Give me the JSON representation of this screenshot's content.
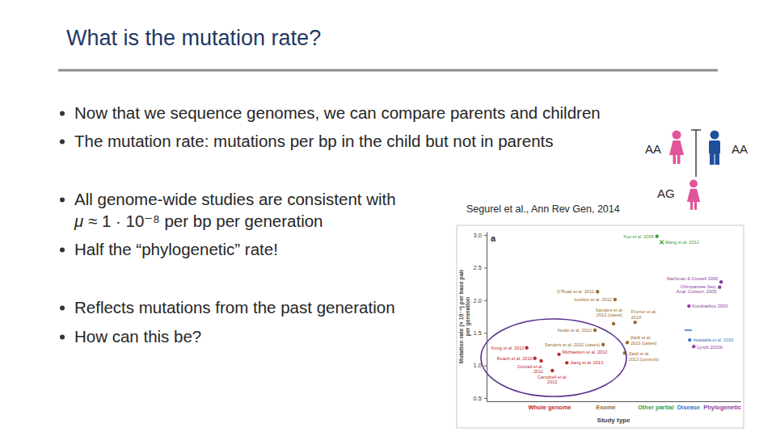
{
  "slide": {
    "title": "What is the mutation rate?",
    "bullets": [
      {
        "text": "Now that we sequence genomes, we can compare parents and children"
      },
      {
        "text": "The mutation rate: mutations per bp in the child but not in parents"
      },
      {
        "text": "All genome-wide studies are consistent with",
        "formula": {
          "symbol": "μ",
          "text": " ≈ 1 · 10⁻⁸ per bp per generation"
        }
      },
      {
        "text": "Half the “phylogenetic” rate!"
      },
      {
        "text": "Reflects mutations from the past generation"
      },
      {
        "text": "How can this be?"
      }
    ],
    "citation": "Segurel et al., Ann Rev Gen, 2014",
    "pedigree": {
      "parent_left": "AA",
      "parent_right": "AA",
      "child": "AG"
    }
  },
  "chart_data": {
    "type": "scatter",
    "panel_label": "a",
    "xlabel": "Study type",
    "ylabel": [
      "Mutation rate (× 10⁻⁸) per base pair",
      "per generation"
    ],
    "xlim": [
      0,
      10
    ],
    "ylim": [
      0.45,
      3.05
    ],
    "xticks": [
      {
        "value": 2.47,
        "label": "Whole genome"
      },
      {
        "value": 4.68,
        "label": "Exome"
      },
      {
        "value": 6.65,
        "label": "Other partial"
      },
      {
        "value": 7.94,
        "label": "Disease"
      },
      {
        "value": 9.27,
        "label": "Phylogenetic"
      }
    ],
    "yticks": [
      0.5,
      {
        "value": 1,
        "label": "1.0"
      },
      1.5,
      {
        "value": 2,
        "label": "2.0"
      },
      2.5,
      {
        "value": 3,
        "label": "3.0"
      }
    ],
    "series": [
      {
        "color": "#c1272d",
        "marker": "circle",
        "x": [
          1.58,
          1.9,
          2.15,
          2.59,
          2.85,
          3.16
        ],
        "values": [
          1.27,
          1.11,
          1.07,
          0.92,
          1.17,
          1.04
        ],
        "point_labels": [
          "Kong et al. 2012",
          "Roach et al. 2010",
          [
            "Conrad et al.",
            "2011"
          ],
          [
            "Campbell et al.",
            "2012"
          ],
          "Michaelson et al. 2012",
          "Jiang et al. 2013"
        ]
      },
      {
        "color": "#9b6b2f",
        "marker": "circle",
        "x": [
          4.37,
          5.06,
          5.0,
          4.27,
          4.59,
          5.85,
          5.54,
          5.44
        ],
        "values": [
          2.13,
          2.01,
          1.64,
          1.54,
          1.32,
          1.66,
          1.35,
          1.19
        ],
        "point_labels": [
          "O’Roak et al. 2012",
          "Iossifov et al. 2012",
          [
            "Sanders et al.",
            "2012 (cases)"
          ],
          "Neale et al. 2012",
          "Sanders et al. 2012 (cases)",
          [
            "Fromer et al.",
            "2014"
          ],
          [
            "Zaidi et al.",
            "2013 (cases)"
          ],
          [
            "Zaidi et al.",
            "2013 (controls)"
          ]
        ]
      },
      {
        "color": "#3d9a3d",
        "marker": "circle",
        "x": [
          6.71
        ],
        "values": [
          2.98
        ],
        "point_labels": [
          "Xue et al. 2009"
        ]
      },
      {
        "color": "#3d9a3d",
        "marker": "cross",
        "x": [
          6.9
        ],
        "values": [
          2.89
        ],
        "point_labels": [
          "Wang et al. 2012"
        ]
      },
      {
        "color": "#3a78c2",
        "marker": "dash",
        "x": [
          7.94
        ],
        "values": [
          1.54
        ]
      },
      {
        "color": "#3a78c2",
        "marker": "circle",
        "x": [
          8.0
        ],
        "values": [
          1.39
        ],
        "point_labels": [
          "Awadalla et al. 2010"
        ]
      },
      {
        "color": "#8e3d9e",
        "marker": "circle",
        "x": [
          9.24,
          9.18,
          7.97,
          8.16
        ],
        "values": [
          2.28,
          2.2,
          1.91,
          1.29
        ],
        "point_labels": [
          "Nachman & Crowell 2000",
          [
            "Chimpanzee Seq.",
            "Anal. Consort. 2005"
          ],
          "Kondrashov 2003",
          "Lynch 2010b"
        ]
      }
    ]
  }
}
